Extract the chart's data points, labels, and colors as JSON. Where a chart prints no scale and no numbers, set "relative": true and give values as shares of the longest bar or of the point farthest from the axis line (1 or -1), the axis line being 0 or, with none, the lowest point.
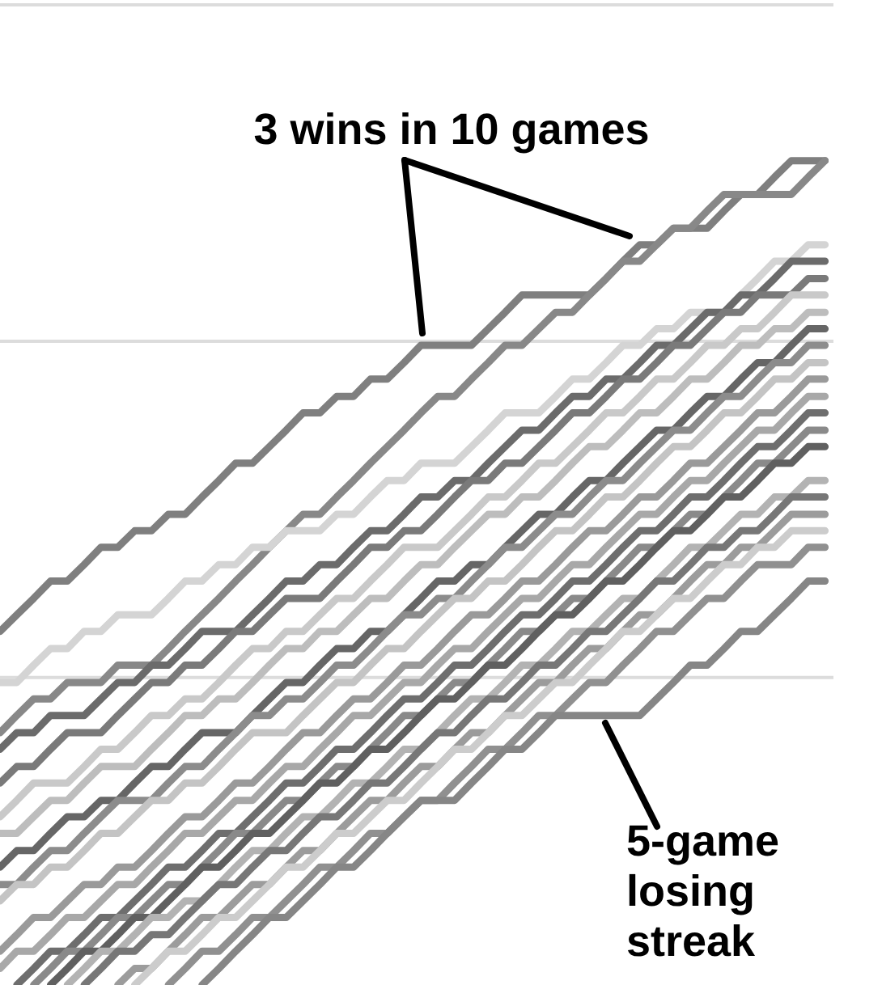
{
  "chart_data": {
    "type": "line",
    "relative": true,
    "line_style": "solid",
    "categories": [
      null,
      null,
      null,
      null,
      null,
      null,
      null,
      null,
      null,
      null,
      null,
      null,
      null,
      null,
      null,
      null,
      null,
      null,
      null,
      null,
      null,
      null,
      null,
      null,
      null,
      null,
      null,
      null,
      null,
      null,
      null,
      null,
      null,
      null,
      null,
      null,
      null,
      null,
      null,
      null,
      null,
      null,
      null,
      null,
      null,
      null,
      null,
      null,
      null,
      null
    ],
    "series": [
      {
        "color": "#7f7f7f",
        "values": [
          0.429,
          0.449,
          0.469,
          0.49,
          0.49,
          0.51,
          0.531,
          0.531,
          0.551,
          0.551,
          0.571,
          0.571,
          0.592,
          0.612,
          0.633,
          0.633,
          0.653,
          0.673,
          0.694,
          0.694,
          0.714,
          0.714,
          0.735,
          0.735,
          0.755,
          0.776,
          0.776,
          0.776,
          0.776,
          0.796,
          0.816,
          0.837,
          0.837,
          0.837,
          0.837,
          0.837,
          0.857,
          0.878,
          0.898,
          0.898,
          0.918,
          0.918,
          0.918,
          0.939,
          0.959,
          0.959,
          0.98,
          1,
          1,
          1
        ]
      },
      {
        "color": "#888888",
        "values": [
          0.306,
          0.327,
          0.347,
          0.347,
          0.367,
          0.367,
          0.367,
          0.388,
          0.388,
          0.388,
          0.408,
          0.429,
          0.449,
          0.469,
          0.49,
          0.51,
          0.531,
          0.551,
          0.571,
          0.571,
          0.592,
          0.612,
          0.633,
          0.653,
          0.673,
          0.694,
          0.714,
          0.714,
          0.735,
          0.755,
          0.776,
          0.776,
          0.796,
          0.816,
          0.816,
          0.837,
          0.857,
          0.878,
          0.878,
          0.898,
          0.918,
          0.918,
          0.939,
          0.959,
          0.959,
          0.959,
          0.959,
          0.959,
          0.98,
          1
        ]
      },
      {
        "color": "#d4d4d4",
        "values": [
          0.367,
          0.367,
          0.388,
          0.408,
          0.408,
          0.429,
          0.429,
          0.449,
          0.449,
          0.449,
          0.469,
          0.49,
          0.49,
          0.51,
          0.51,
          0.531,
          0.531,
          0.551,
          0.551,
          0.551,
          0.571,
          0.571,
          0.592,
          0.612,
          0.612,
          0.633,
          0.633,
          0.633,
          0.653,
          0.673,
          0.694,
          0.694,
          0.694,
          0.714,
          0.735,
          0.735,
          0.755,
          0.776,
          0.776,
          0.796,
          0.796,
          0.816,
          0.816,
          0.816,
          0.837,
          0.857,
          0.878,
          0.878,
          0.898,
          0.898
        ]
      },
      {
        "color": "#6b6b6b",
        "values": [
          0.286,
          0.306,
          0.306,
          0.327,
          0.327,
          0.327,
          0.347,
          0.367,
          0.367,
          0.388,
          0.388,
          0.408,
          0.429,
          0.429,
          0.429,
          0.449,
          0.469,
          0.49,
          0.49,
          0.51,
          0.51,
          0.531,
          0.551,
          0.551,
          0.571,
          0.592,
          0.592,
          0.612,
          0.612,
          0.633,
          0.653,
          0.673,
          0.673,
          0.694,
          0.714,
          0.714,
          0.735,
          0.735,
          0.755,
          0.776,
          0.776,
          0.796,
          0.816,
          0.816,
          0.837,
          0.837,
          0.857,
          0.878,
          0.878,
          0.878
        ]
      },
      {
        "color": "#7a7a7a",
        "values": [
          0.245,
          0.265,
          0.265,
          0.286,
          0.306,
          0.306,
          0.306,
          0.327,
          0.347,
          0.367,
          0.367,
          0.388,
          0.388,
          0.408,
          0.429,
          0.429,
          0.449,
          0.469,
          0.469,
          0.469,
          0.49,
          0.51,
          0.531,
          0.531,
          0.551,
          0.551,
          0.571,
          0.592,
          0.612,
          0.612,
          0.633,
          0.633,
          0.653,
          0.673,
          0.694,
          0.694,
          0.714,
          0.735,
          0.735,
          0.755,
          0.776,
          0.776,
          0.796,
          0.816,
          0.816,
          0.837,
          0.837,
          0.837,
          0.857,
          0.857
        ]
      },
      {
        "color": "#c9c9c9",
        "values": [
          0.204,
          0.224,
          0.245,
          0.245,
          0.245,
          0.265,
          0.286,
          0.286,
          0.306,
          0.327,
          0.327,
          0.347,
          0.347,
          0.367,
          0.388,
          0.408,
          0.408,
          0.429,
          0.429,
          0.449,
          0.469,
          0.469,
          0.49,
          0.51,
          0.531,
          0.531,
          0.531,
          0.551,
          0.571,
          0.592,
          0.592,
          0.612,
          0.633,
          0.633,
          0.653,
          0.673,
          0.694,
          0.694,
          0.714,
          0.735,
          0.735,
          0.755,
          0.776,
          0.776,
          0.796,
          0.796,
          0.816,
          0.837,
          0.837,
          0.837
        ]
      },
      {
        "color": "#bdbdbd",
        "values": [
          0.184,
          0.184,
          0.204,
          0.224,
          0.224,
          0.245,
          0.265,
          0.265,
          0.265,
          0.286,
          0.306,
          0.327,
          0.327,
          0.347,
          0.347,
          0.367,
          0.388,
          0.408,
          0.408,
          0.429,
          0.429,
          0.449,
          0.469,
          0.469,
          0.49,
          0.51,
          0.51,
          0.531,
          0.551,
          0.571,
          0.571,
          0.592,
          0.592,
          0.612,
          0.633,
          0.653,
          0.653,
          0.673,
          0.694,
          0.694,
          0.714,
          0.735,
          0.735,
          0.755,
          0.776,
          0.776,
          0.796,
          0.796,
          0.816,
          0.816
        ]
      },
      {
        "color": "#666666",
        "values": [
          0.143,
          0.163,
          0.163,
          0.184,
          0.204,
          0.204,
          0.224,
          0.224,
          0.245,
          0.265,
          0.265,
          0.286,
          0.306,
          0.306,
          0.306,
          0.327,
          0.347,
          0.367,
          0.367,
          0.388,
          0.408,
          0.408,
          0.429,
          0.429,
          0.449,
          0.469,
          0.49,
          0.49,
          0.51,
          0.51,
          0.531,
          0.551,
          0.571,
          0.571,
          0.592,
          0.612,
          0.612,
          0.633,
          0.653,
          0.673,
          0.673,
          0.694,
          0.714,
          0.714,
          0.735,
          0.755,
          0.755,
          0.776,
          0.796,
          0.796
        ]
      },
      {
        "color": "#8c8c8c",
        "values": [
          0.122,
          0.122,
          0.143,
          0.163,
          0.163,
          0.184,
          0.204,
          0.224,
          0.224,
          0.224,
          0.245,
          0.265,
          0.265,
          0.286,
          0.306,
          0.327,
          0.327,
          0.347,
          0.347,
          0.367,
          0.388,
          0.388,
          0.408,
          0.429,
          0.449,
          0.449,
          0.469,
          0.469,
          0.49,
          0.51,
          0.531,
          0.531,
          0.551,
          0.571,
          0.571,
          0.592,
          0.612,
          0.612,
          0.633,
          0.653,
          0.673,
          0.673,
          0.694,
          0.714,
          0.714,
          0.735,
          0.755,
          0.755,
          0.776,
          0.776
        ]
      },
      {
        "color": "#c4c4c4",
        "values": [
          0.102,
          0.122,
          0.122,
          0.143,
          0.143,
          0.163,
          0.184,
          0.184,
          0.204,
          0.224,
          0.224,
          0.245,
          0.245,
          0.265,
          0.286,
          0.306,
          0.306,
          0.306,
          0.327,
          0.347,
          0.367,
          0.367,
          0.388,
          0.408,
          0.408,
          0.429,
          0.449,
          0.469,
          0.469,
          0.49,
          0.49,
          0.51,
          0.531,
          0.551,
          0.551,
          0.571,
          0.592,
          0.592,
          0.612,
          0.633,
          0.653,
          0.653,
          0.673,
          0.694,
          0.694,
          0.714,
          0.735,
          0.735,
          0.755,
          0.755
        ]
      },
      {
        "color": "#9a9a9a",
        "values": [
          0.041,
          0.061,
          0.082,
          0.082,
          0.102,
          0.122,
          0.122,
          0.143,
          0.143,
          0.163,
          0.184,
          0.204,
          0.204,
          0.224,
          0.245,
          0.245,
          0.265,
          0.286,
          0.306,
          0.306,
          0.327,
          0.347,
          0.347,
          0.367,
          0.388,
          0.388,
          0.408,
          0.429,
          0.449,
          0.449,
          0.469,
          0.49,
          0.49,
          0.51,
          0.531,
          0.551,
          0.551,
          0.571,
          0.592,
          0.592,
          0.612,
          0.633,
          0.633,
          0.653,
          0.673,
          0.694,
          0.694,
          0.714,
          0.735,
          0.735
        ]
      },
      {
        "color": "#a8a8a8",
        "values": [
          0.02,
          0.041,
          0.041,
          0.061,
          0.082,
          0.082,
          0.102,
          0.122,
          0.122,
          0.143,
          0.163,
          0.184,
          0.184,
          0.204,
          0.224,
          0.224,
          0.245,
          0.265,
          0.265,
          0.286,
          0.306,
          0.327,
          0.327,
          0.347,
          0.367,
          0.367,
          0.388,
          0.408,
          0.408,
          0.429,
          0.449,
          0.469,
          0.469,
          0.49,
          0.51,
          0.51,
          0.531,
          0.551,
          0.571,
          0.571,
          0.592,
          0.612,
          0.612,
          0.633,
          0.653,
          0.673,
          0.673,
          0.694,
          0.714,
          0.714
        ]
      },
      {
        "color": "#6e6e6e",
        "values": [
          null,
          0,
          0.02,
          0.041,
          0.041,
          0.061,
          0.082,
          0.082,
          0.102,
          0.122,
          0.143,
          0.143,
          0.163,
          0.184,
          0.184,
          0.204,
          0.224,
          0.245,
          0.245,
          0.265,
          0.286,
          0.286,
          0.306,
          0.327,
          0.347,
          0.347,
          0.367,
          0.388,
          0.388,
          0.408,
          0.429,
          0.449,
          0.449,
          0.469,
          0.49,
          0.49,
          0.51,
          0.531,
          0.551,
          0.551,
          0.571,
          0.592,
          0.592,
          0.612,
          0.633,
          0.653,
          0.653,
          0.673,
          0.694,
          0.694
        ]
      },
      {
        "color": "#8a8a8a",
        "values": [
          null,
          null,
          0,
          0.02,
          0.041,
          0.041,
          0.061,
          0.082,
          0.082,
          0.102,
          0.122,
          0.122,
          0.143,
          0.163,
          0.184,
          0.184,
          0.204,
          0.224,
          0.224,
          0.245,
          0.265,
          0.265,
          0.286,
          0.306,
          0.327,
          0.327,
          0.347,
          0.367,
          0.367,
          0.388,
          0.408,
          0.429,
          0.429,
          0.449,
          0.469,
          0.469,
          0.49,
          0.51,
          0.531,
          0.531,
          0.551,
          0.571,
          0.571,
          0.592,
          0.612,
          0.633,
          0.633,
          0.653,
          0.673,
          0.673
        ]
      },
      {
        "color": "#606060",
        "values": [
          null,
          null,
          null,
          0,
          0.02,
          0.041,
          0.041,
          0.061,
          0.082,
          0.082,
          0.102,
          0.122,
          0.143,
          0.143,
          0.163,
          0.184,
          0.184,
          0.204,
          0.224,
          0.245,
          0.245,
          0.265,
          0.286,
          0.286,
          0.306,
          0.327,
          0.347,
          0.347,
          0.367,
          0.388,
          0.388,
          0.408,
          0.429,
          0.449,
          0.449,
          0.469,
          0.49,
          0.49,
          0.51,
          0.531,
          0.551,
          0.551,
          0.571,
          0.592,
          0.592,
          0.612,
          0.633,
          0.633,
          0.653,
          0.653
        ]
      },
      {
        "color": "#b3b3b3",
        "values": [
          null,
          null,
          null,
          null,
          0,
          0.02,
          0.041,
          0.041,
          0.061,
          0.082,
          0.082,
          0.102,
          0.102,
          0.122,
          0.143,
          0.163,
          0.163,
          0.184,
          0.204,
          0.204,
          0.224,
          0.245,
          0.245,
          0.265,
          0.286,
          0.286,
          0.306,
          0.327,
          0.347,
          0.347,
          0.367,
          0.388,
          0.388,
          0.408,
          0.429,
          0.429,
          0.449,
          0.469,
          0.469,
          0.49,
          0.51,
          0.531,
          0.531,
          0.551,
          0.571,
          0.571,
          0.592,
          0.592,
          0.612,
          0.612
        ]
      },
      {
        "color": "#777777",
        "values": [
          null,
          null,
          null,
          null,
          null,
          0,
          0.02,
          0.041,
          0.041,
          0.061,
          0.061,
          0.082,
          0.102,
          0.122,
          0.122,
          0.143,
          0.163,
          0.163,
          0.184,
          0.204,
          0.204,
          0.224,
          0.245,
          0.245,
          0.265,
          0.286,
          0.306,
          0.306,
          0.327,
          0.347,
          0.347,
          0.367,
          0.388,
          0.388,
          0.408,
          0.429,
          0.429,
          0.449,
          0.469,
          0.49,
          0.49,
          0.51,
          0.531,
          0.531,
          0.551,
          0.551,
          0.571,
          0.592,
          0.592,
          0.592
        ]
      },
      {
        "color": "#9c9c9c",
        "values": [
          null,
          null,
          null,
          null,
          null,
          null,
          null,
          0,
          0.02,
          0.02,
          0.041,
          0.061,
          0.082,
          0.082,
          0.102,
          0.122,
          0.122,
          0.143,
          0.163,
          0.163,
          0.184,
          0.204,
          0.224,
          0.224,
          0.245,
          0.265,
          0.265,
          0.286,
          0.306,
          0.306,
          0.327,
          0.347,
          0.367,
          0.367,
          0.388,
          0.408,
          0.408,
          0.429,
          0.449,
          0.449,
          0.469,
          0.49,
          0.51,
          0.51,
          0.531,
          0.531,
          0.551,
          0.571,
          0.571,
          0.571
        ]
      },
      {
        "color": "#cccccc",
        "values": [
          null,
          null,
          null,
          null,
          null,
          null,
          null,
          null,
          0,
          0.02,
          0.041,
          0.041,
          0.061,
          0.082,
          0.082,
          0.102,
          0.122,
          0.143,
          0.143,
          0.163,
          0.184,
          0.184,
          0.204,
          0.224,
          0.224,
          0.245,
          0.265,
          0.286,
          0.286,
          0.306,
          0.327,
          0.327,
          0.347,
          0.367,
          0.367,
          0.388,
          0.408,
          0.429,
          0.429,
          0.449,
          0.469,
          0.469,
          0.49,
          0.51,
          0.51,
          0.531,
          0.531,
          0.551,
          0.551,
          0.551
        ]
      },
      {
        "color": "#909090",
        "values": [
          null,
          null,
          null,
          null,
          null,
          null,
          null,
          null,
          null,
          null,
          0,
          0.02,
          0.041,
          0.041,
          0.061,
          0.082,
          0.082,
          0.102,
          0.122,
          0.143,
          0.143,
          0.163,
          0.184,
          0.184,
          0.204,
          0.224,
          0.224,
          0.245,
          0.265,
          0.286,
          0.286,
          0.306,
          0.327,
          0.327,
          0.347,
          0.367,
          0.367,
          0.388,
          0.408,
          0.429,
          0.429,
          0.449,
          0.469,
          0.469,
          0.49,
          0.51,
          0.51,
          0.51,
          0.531,
          0.531
        ]
      },
      {
        "color": "#868686",
        "values": [
          null,
          null,
          null,
          null,
          null,
          null,
          null,
          null,
          null,
          null,
          null,
          null,
          0,
          0.02,
          0.041,
          0.061,
          0.082,
          0.082,
          0.102,
          0.122,
          0.143,
          0.143,
          0.163,
          0.184,
          0.204,
          0.224,
          0.224,
          0.224,
          0.245,
          0.265,
          0.286,
          0.286,
          0.306,
          0.327,
          0.327,
          0.327,
          0.327,
          0.327,
          0.327,
          0.347,
          0.367,
          0.388,
          0.388,
          0.408,
          0.429,
          0.429,
          0.449,
          0.469,
          0.49,
          0.49
        ]
      }
    ],
    "ref_lines": [
      {
        "axis": "y",
        "value": 0.373,
        "color": "#dcdcdc"
      },
      {
        "axis": "y",
        "value": 0.781,
        "color": "#dcdcdc"
      },
      {
        "axis": "y",
        "value": 1.189,
        "color": "#dcdcdc"
      }
    ],
    "annotations": [
      "3 wins in 10 games",
      "5-game losing streak"
    ]
  }
}
